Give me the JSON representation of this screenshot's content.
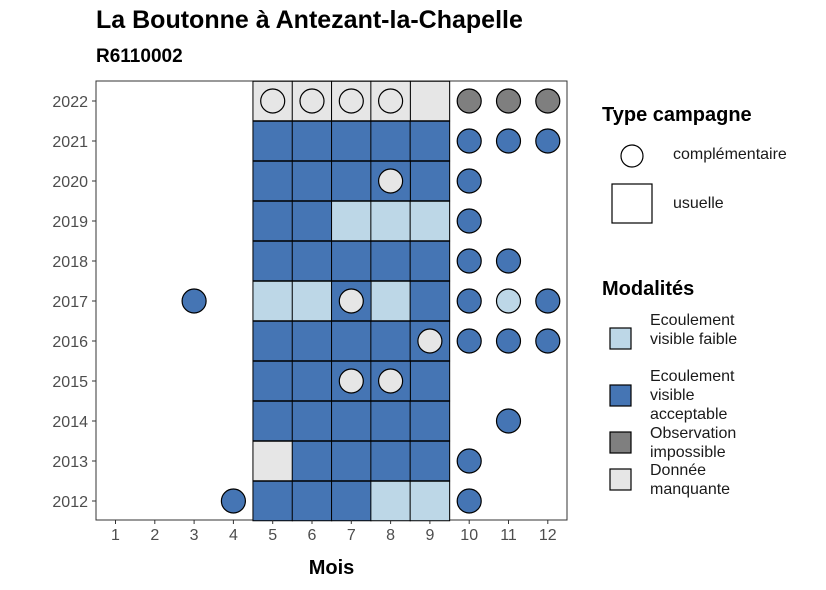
{
  "chart_data": {
    "type": "heatmap",
    "title": "La Boutonne à Antezant-la-Chapelle",
    "subtitle": "R6110002",
    "xlabel": "Mois",
    "ylabel": "",
    "x_ticks": [
      "1",
      "2",
      "3",
      "4",
      "5",
      "6",
      "7",
      "8",
      "9",
      "10",
      "11",
      "12"
    ],
    "y_ticks": [
      "2012",
      "2013",
      "2014",
      "2015",
      "2016",
      "2017",
      "2018",
      "2019",
      "2020",
      "2021",
      "2022"
    ],
    "usual_campaign_months": [
      5,
      6,
      7,
      8,
      9
    ],
    "colors": {
      "faible": "#bdd7e7",
      "acceptable": "#4575b4",
      "impossible": "#7f7f7f",
      "manquante": "#e6e6e6"
    },
    "legend_type": {
      "title": "Type campagne",
      "items": [
        {
          "key": "complementaire",
          "label": "complémentaire",
          "shape": "circle"
        },
        {
          "key": "usuelle",
          "label": "usuelle",
          "shape": "square"
        }
      ]
    },
    "legend_modalites": {
      "title": "Modalités",
      "items": [
        {
          "key": "faible",
          "label": "Ecoulement visible faible"
        },
        {
          "key": "acceptable",
          "label": "Ecoulement visible acceptable"
        },
        {
          "key": "impossible",
          "label": "Observation impossible"
        },
        {
          "key": "manquante",
          "label": "Donnée manquante"
        }
      ]
    },
    "observations": [
      {
        "year": 2012,
        "month": 4,
        "type": "complementaire",
        "modalite": "acceptable"
      },
      {
        "year": 2012,
        "month": 5,
        "type": "usuelle",
        "modalite": "acceptable"
      },
      {
        "year": 2012,
        "month": 6,
        "type": "usuelle",
        "modalite": "acceptable"
      },
      {
        "year": 2012,
        "month": 7,
        "type": "usuelle",
        "modalite": "acceptable"
      },
      {
        "year": 2012,
        "month": 8,
        "type": "usuelle",
        "modalite": "faible"
      },
      {
        "year": 2012,
        "month": 9,
        "type": "usuelle",
        "modalite": "faible"
      },
      {
        "year": 2012,
        "month": 10,
        "type": "complementaire",
        "modalite": "acceptable"
      },
      {
        "year": 2013,
        "month": 5,
        "type": "usuelle",
        "modalite": "manquante"
      },
      {
        "year": 2013,
        "month": 6,
        "type": "usuelle",
        "modalite": "acceptable"
      },
      {
        "year": 2013,
        "month": 7,
        "type": "usuelle",
        "modalite": "acceptable"
      },
      {
        "year": 2013,
        "month": 8,
        "type": "usuelle",
        "modalite": "acceptable"
      },
      {
        "year": 2013,
        "month": 9,
        "type": "usuelle",
        "modalite": "acceptable"
      },
      {
        "year": 2013,
        "month": 10,
        "type": "complementaire",
        "modalite": "acceptable"
      },
      {
        "year": 2014,
        "month": 5,
        "type": "usuelle",
        "modalite": "acceptable"
      },
      {
        "year": 2014,
        "month": 6,
        "type": "usuelle",
        "modalite": "acceptable"
      },
      {
        "year": 2014,
        "month": 7,
        "type": "usuelle",
        "modalite": "acceptable"
      },
      {
        "year": 2014,
        "month": 8,
        "type": "usuelle",
        "modalite": "acceptable"
      },
      {
        "year": 2014,
        "month": 9,
        "type": "usuelle",
        "modalite": "acceptable"
      },
      {
        "year": 2014,
        "month": 11,
        "type": "complementaire",
        "modalite": "acceptable"
      },
      {
        "year": 2015,
        "month": 5,
        "type": "usuelle",
        "modalite": "acceptable"
      },
      {
        "year": 2015,
        "month": 6,
        "type": "usuelle",
        "modalite": "acceptable"
      },
      {
        "year": 2015,
        "month": 7,
        "type": "complementaire",
        "modalite": "manquante"
      },
      {
        "year": 2015,
        "month": 8,
        "type": "complementaire",
        "modalite": "manquante"
      },
      {
        "year": 2015,
        "month": 9,
        "type": "usuelle",
        "modalite": "acceptable"
      },
      {
        "year": 2016,
        "month": 5,
        "type": "usuelle",
        "modalite": "acceptable"
      },
      {
        "year": 2016,
        "month": 6,
        "type": "usuelle",
        "modalite": "acceptable"
      },
      {
        "year": 2016,
        "month": 7,
        "type": "usuelle",
        "modalite": "acceptable"
      },
      {
        "year": 2016,
        "month": 8,
        "type": "usuelle",
        "modalite": "acceptable"
      },
      {
        "year": 2016,
        "month": 9,
        "type": "complementaire",
        "modalite": "manquante"
      },
      {
        "year": 2016,
        "month": 10,
        "type": "complementaire",
        "modalite": "acceptable"
      },
      {
        "year": 2016,
        "month": 11,
        "type": "complementaire",
        "modalite": "acceptable"
      },
      {
        "year": 2016,
        "month": 12,
        "type": "complementaire",
        "modalite": "acceptable"
      },
      {
        "year": 2017,
        "month": 3,
        "type": "complementaire",
        "modalite": "acceptable"
      },
      {
        "year": 2017,
        "month": 5,
        "type": "usuelle",
        "modalite": "faible"
      },
      {
        "year": 2017,
        "month": 6,
        "type": "usuelle",
        "modalite": "faible"
      },
      {
        "year": 2017,
        "month": 7,
        "type": "complementaire",
        "modalite": "manquante"
      },
      {
        "year": 2017,
        "month": 8,
        "type": "usuelle",
        "modalite": "faible"
      },
      {
        "year": 2017,
        "month": 9,
        "type": "usuelle",
        "modalite": "acceptable"
      },
      {
        "year": 2017,
        "month": 10,
        "type": "complementaire",
        "modalite": "acceptable"
      },
      {
        "year": 2017,
        "month": 11,
        "type": "complementaire",
        "modalite": "faible"
      },
      {
        "year": 2017,
        "month": 12,
        "type": "complementaire",
        "modalite": "acceptable"
      },
      {
        "year": 2018,
        "month": 5,
        "type": "usuelle",
        "modalite": "acceptable"
      },
      {
        "year": 2018,
        "month": 6,
        "type": "usuelle",
        "modalite": "acceptable"
      },
      {
        "year": 2018,
        "month": 7,
        "type": "usuelle",
        "modalite": "acceptable"
      },
      {
        "year": 2018,
        "month": 8,
        "type": "usuelle",
        "modalite": "acceptable"
      },
      {
        "year": 2018,
        "month": 9,
        "type": "usuelle",
        "modalite": "acceptable"
      },
      {
        "year": 2018,
        "month": 10,
        "type": "complementaire",
        "modalite": "acceptable"
      },
      {
        "year": 2018,
        "month": 11,
        "type": "complementaire",
        "modalite": "acceptable"
      },
      {
        "year": 2019,
        "month": 5,
        "type": "usuelle",
        "modalite": "acceptable"
      },
      {
        "year": 2019,
        "month": 6,
        "type": "usuelle",
        "modalite": "acceptable"
      },
      {
        "year": 2019,
        "month": 7,
        "type": "usuelle",
        "modalite": "faible"
      },
      {
        "year": 2019,
        "month": 8,
        "type": "usuelle",
        "modalite": "faible"
      },
      {
        "year": 2019,
        "month": 9,
        "type": "usuelle",
        "modalite": "faible"
      },
      {
        "year": 2019,
        "month": 10,
        "type": "complementaire",
        "modalite": "acceptable"
      },
      {
        "year": 2020,
        "month": 5,
        "type": "usuelle",
        "modalite": "acceptable"
      },
      {
        "year": 2020,
        "month": 6,
        "type": "usuelle",
        "modalite": "acceptable"
      },
      {
        "year": 2020,
        "month": 7,
        "type": "usuelle",
        "modalite": "acceptable"
      },
      {
        "year": 2020,
        "month": 8,
        "type": "complementaire",
        "modalite": "manquante"
      },
      {
        "year": 2020,
        "month": 9,
        "type": "usuelle",
        "modalite": "acceptable"
      },
      {
        "year": 2020,
        "month": 10,
        "type": "complementaire",
        "modalite": "acceptable"
      },
      {
        "year": 2021,
        "month": 5,
        "type": "usuelle",
        "modalite": "acceptable"
      },
      {
        "year": 2021,
        "month": 6,
        "type": "usuelle",
        "modalite": "acceptable"
      },
      {
        "year": 2021,
        "month": 7,
        "type": "usuelle",
        "modalite": "acceptable"
      },
      {
        "year": 2021,
        "month": 8,
        "type": "usuelle",
        "modalite": "acceptable"
      },
      {
        "year": 2021,
        "month": 9,
        "type": "usuelle",
        "modalite": "acceptable"
      },
      {
        "year": 2021,
        "month": 10,
        "type": "complementaire",
        "modalite": "acceptable"
      },
      {
        "year": 2021,
        "month": 11,
        "type": "complementaire",
        "modalite": "acceptable"
      },
      {
        "year": 2021,
        "month": 12,
        "type": "complementaire",
        "modalite": "acceptable"
      },
      {
        "year": 2022,
        "month": 5,
        "type": "complementaire",
        "modalite": "manquante"
      },
      {
        "year": 2022,
        "month": 6,
        "type": "complementaire",
        "modalite": "manquante"
      },
      {
        "year": 2022,
        "month": 7,
        "type": "complementaire",
        "modalite": "manquante"
      },
      {
        "year": 2022,
        "month": 8,
        "type": "complementaire",
        "modalite": "manquante"
      },
      {
        "year": 2022,
        "month": 9,
        "type": "usuelle",
        "modalite": "manquante"
      },
      {
        "year": 2022,
        "month": 10,
        "type": "complementaire",
        "modalite": "impossible"
      },
      {
        "year": 2022,
        "month": 11,
        "type": "complementaire",
        "modalite": "impossible"
      },
      {
        "year": 2022,
        "month": 12,
        "type": "complementaire",
        "modalite": "impossible"
      }
    ]
  }
}
